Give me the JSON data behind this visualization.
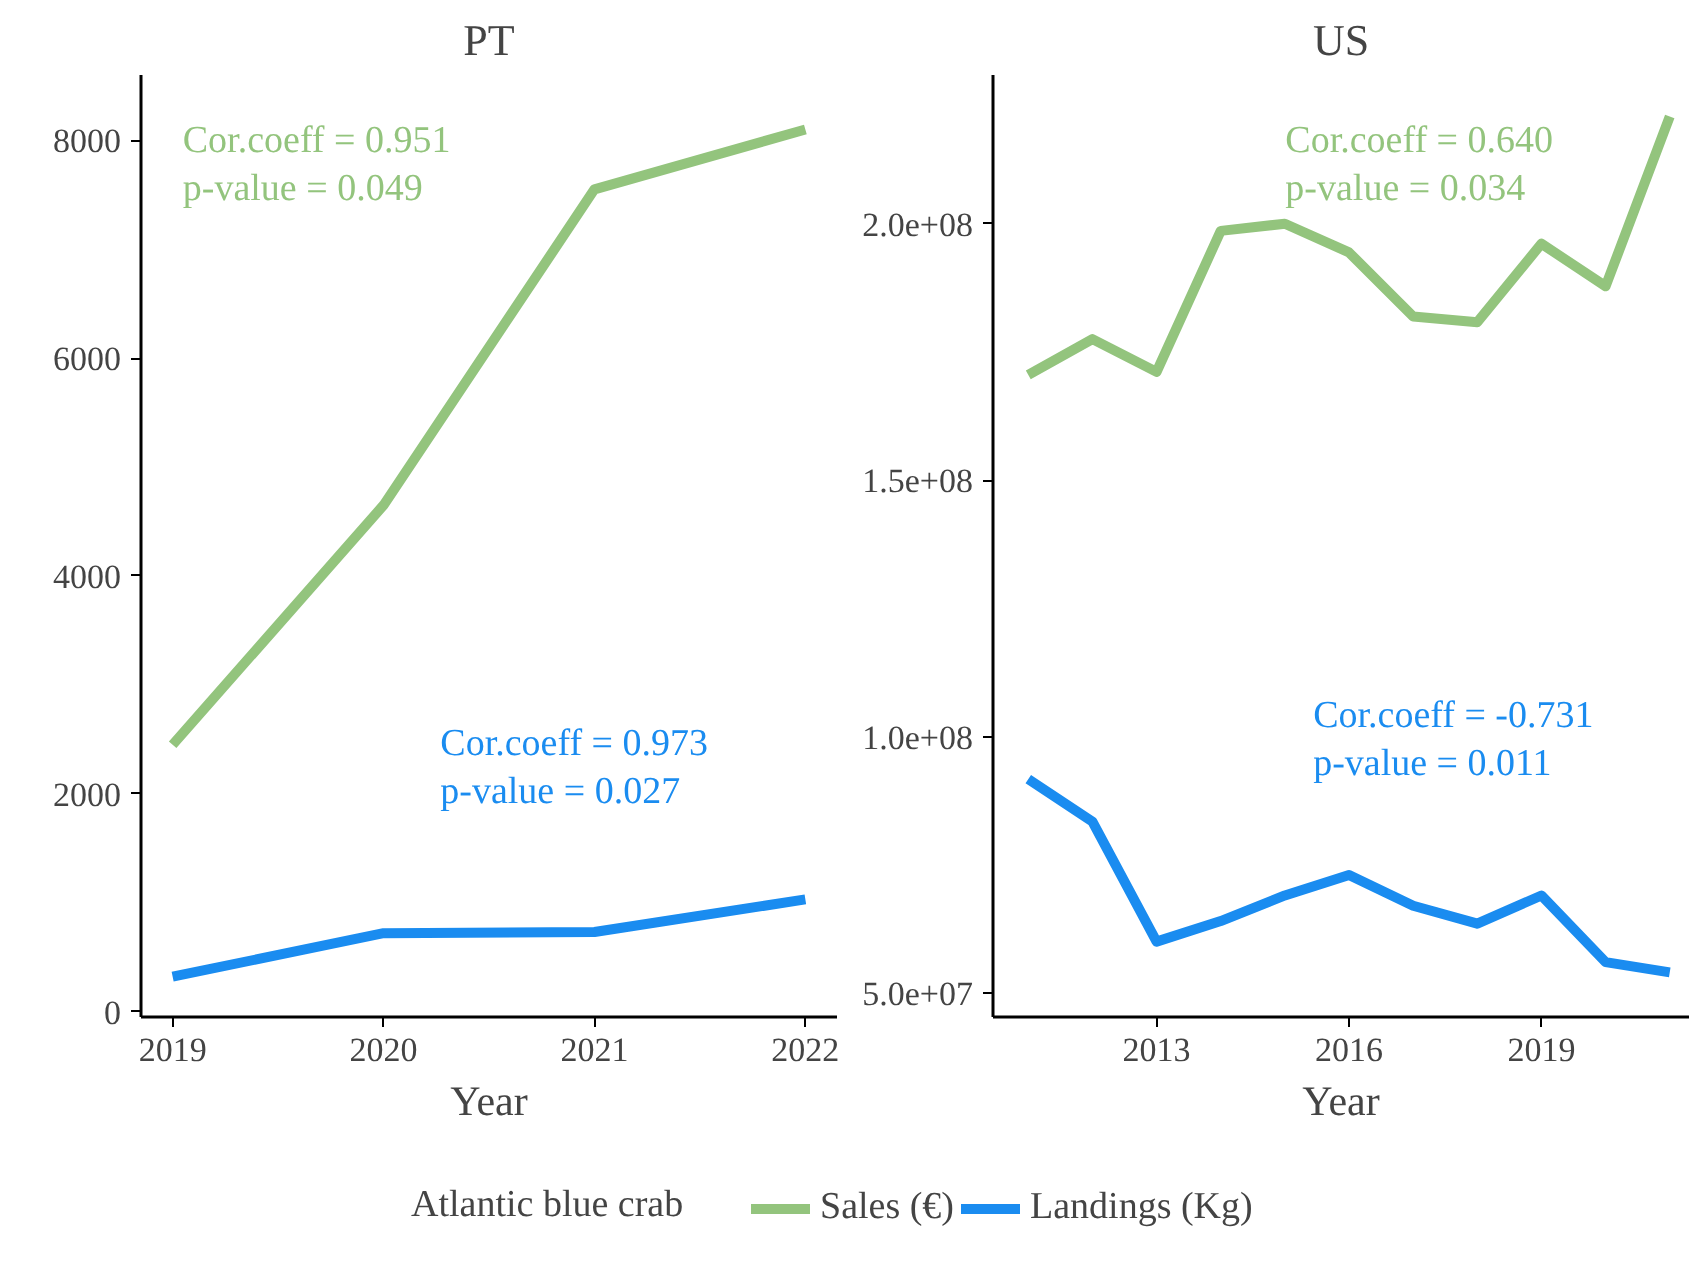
{
  "chart_data": [
    {
      "type": "line",
      "title": "PT",
      "xlabel": "Year",
      "x": [
        2019,
        2020,
        2021,
        2022
      ],
      "series": [
        {
          "name": "Sales (€)",
          "color": "#93c47d",
          "values": [
            2450,
            4650,
            7550,
            8100
          ]
        },
        {
          "name": "Landings (Kg)",
          "color": "#1a8cf0",
          "values": [
            320,
            720,
            730,
            1030
          ]
        }
      ],
      "xlim": [
        2018.85,
        2022.15
      ],
      "xticks": [
        2019,
        2020,
        2021,
        2022
      ],
      "ylim": [
        -50,
        8600
      ],
      "yticks": [
        0,
        2000,
        4000,
        6000,
        8000
      ],
      "annotations": [
        "Cor.coeff = 0.951\np-value = 0.049",
        "Cor.coeff = 0.973\np-value = 0.027"
      ],
      "grid": false,
      "legend": "bottom",
      "legend_title": "Atlantic blue crab",
      "line_style": "solid",
      "marker": "none"
    },
    {
      "type": "line",
      "title": "US",
      "xlabel": "Year",
      "x": [
        2011,
        2012,
        2013,
        2014,
        2015,
        2016,
        2017,
        2018,
        2019,
        2020,
        2021
      ],
      "series": [
        {
          "color": "#93c47d",
          "values": [
            170500000,
            177500000,
            171100000,
            198600000,
            200000000,
            194400000,
            181900000,
            180800000,
            196100000,
            187800000,
            220900000
          ]
        },
        {
          "color": "#1a8cf0",
          "values": [
            91700000,
            83400000,
            60000000,
            64000000,
            69000000,
            73000000,
            67000000,
            63500000,
            69000000,
            56000000,
            54000000
          ]
        }
      ],
      "xlim": [
        2010.45,
        2021.3
      ],
      "xticks": [
        2013,
        2016,
        2019
      ],
      "ylim": [
        45300000,
        229000000
      ],
      "yticks": [
        {
          "value": 50000000,
          "label": "5.0e+07"
        },
        {
          "value": 100000000,
          "label": "1.0e+08"
        },
        {
          "value": 150000000,
          "label": "1.5e+08"
        },
        {
          "value": 200000000,
          "label": "2.0e+08"
        }
      ],
      "annotations": [
        "Cor.coeff = 0.640\np-value = 0.034",
        "Cor.coeff = -0.731\np-value = 0.011"
      ],
      "grid": false,
      "line_style": "solid",
      "marker": "none"
    }
  ]
}
